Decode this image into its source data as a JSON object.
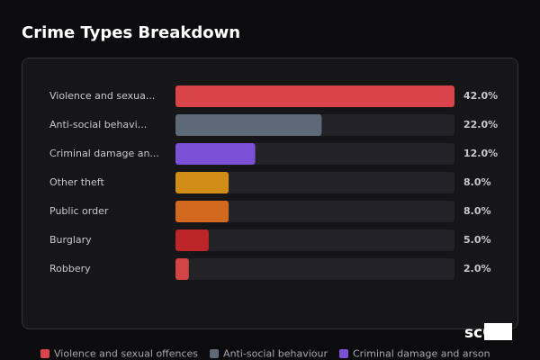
{
  "chart_data": {
    "type": "bar",
    "orientation": "horizontal",
    "title": "Crime Types Breakdown",
    "categories": [
      "Violence and sexua...",
      "Anti-social behavi...",
      "Criminal damage an...",
      "Other theft",
      "Public order",
      "Burglary",
      "Robbery"
    ],
    "values": [
      42,
      22,
      12,
      8,
      8,
      5,
      2
    ],
    "value_labels": [
      "42.0%",
      "22.0%",
      "12.0%",
      "8.0%",
      "8.0%",
      "5.0%",
      "2.0%"
    ],
    "colors": [
      "#d94448",
      "#5e6977",
      "#7b4fd6",
      "#d18d17",
      "#d3691f",
      "#bd2629",
      "#d24446"
    ],
    "xlim": [
      0,
      42
    ],
    "legend": [
      {
        "name": "Violence and sexual offences",
        "color": "#d94448"
      },
      {
        "name": "Anti-social behaviour",
        "color": "#5e6977"
      },
      {
        "name": "Criminal damage and arson",
        "color": "#7b4fd6"
      }
    ],
    "watermark": "scOS"
  }
}
